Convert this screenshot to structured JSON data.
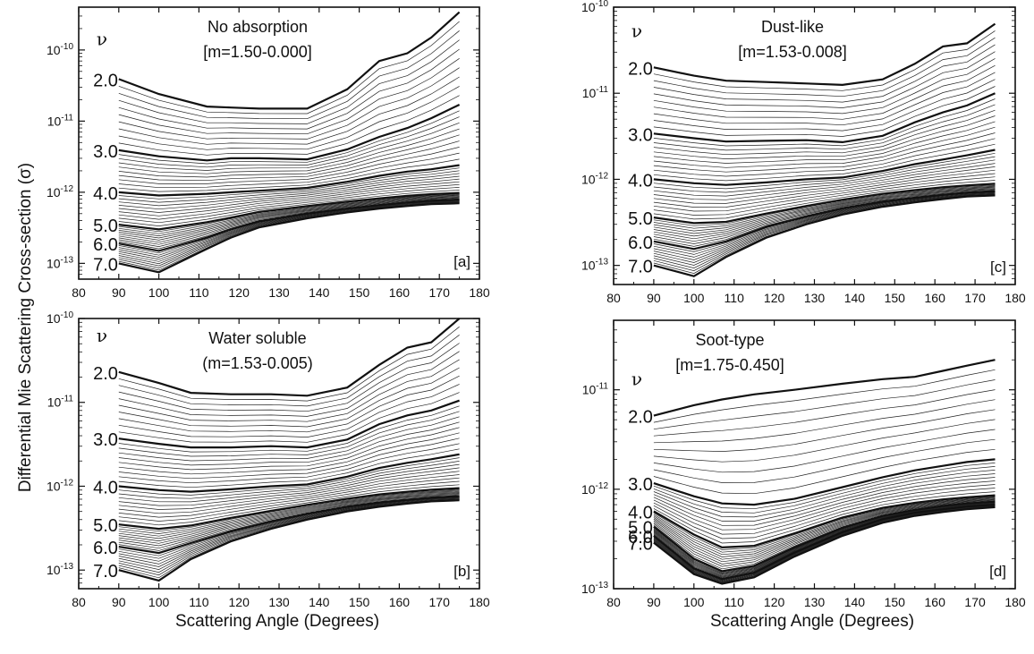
{
  "figure": {
    "ylabel": "Differential Mie Scattering Cross-section (σ)",
    "xlabel": "Scattering Angle (Degrees)"
  },
  "chart_data": [
    {
      "id": "a",
      "type": "line",
      "title": "No absorption",
      "subtitle": "[m=1.50-0.000]",
      "panel_label": "[a]",
      "nu_symbol": "ν",
      "xlim": [
        80,
        180
      ],
      "ylim": [
        6e-14,
        4e-10
      ],
      "y_scale": "log",
      "x_ticks": [
        "80",
        "90",
        "100",
        "110",
        "120",
        "130",
        "140",
        "150",
        "160",
        "170",
        "180"
      ],
      "y_ticks": [
        {
          "v": 1e-13,
          "label": "10-13"
        },
        {
          "v": 1e-12,
          "label": "10-12"
        },
        {
          "v": 1e-11,
          "label": "10-11"
        },
        {
          "v": 1e-10,
          "label": "10-10"
        }
      ],
      "x": [
        90,
        100,
        112,
        118,
        125,
        137,
        147,
        155,
        162,
        168,
        175
      ],
      "nu_labels": [
        "2.0",
        "3.0",
        "4.0",
        "5.0",
        "6.0",
        "7.0"
      ],
      "series": [
        {
          "nu": "2.0",
          "values": [
            3.9e-11,
            2.4e-11,
            1.6e-11,
            1.55e-11,
            1.5e-11,
            1.5e-11,
            2.8e-11,
            7e-11,
            9e-11,
            1.5e-10,
            3.4e-10
          ]
        },
        {
          "nu": "3.0",
          "values": [
            3.9e-12,
            3.2e-12,
            2.8e-12,
            3e-12,
            3e-12,
            2.9e-12,
            4e-12,
            6e-12,
            8e-12,
            1.1e-11,
            1.7e-11
          ]
        },
        {
          "nu": "4.0",
          "values": [
            1e-12,
            9e-13,
            9.5e-13,
            1e-12,
            1.05e-12,
            1.15e-12,
            1.4e-12,
            1.7e-12,
            1.95e-12,
            2.1e-12,
            2.4e-12
          ]
        },
        {
          "nu": "5.0",
          "values": [
            3.5e-13,
            3e-13,
            3.8e-13,
            4.4e-13,
            5.3e-13,
            6.4e-13,
            7.4e-13,
            8.2e-13,
            8.9e-13,
            9.4e-13,
            9.8e-13
          ]
        },
        {
          "nu": "6.0",
          "values": [
            1.9e-13,
            1.5e-13,
            2.3e-13,
            3e-13,
            3.9e-13,
            5e-13,
            5.9e-13,
            6.6e-13,
            7.2e-13,
            7.6e-13,
            7.9e-13
          ]
        },
        {
          "nu": "7.0",
          "values": [
            1e-13,
            7.5e-14,
            1.6e-13,
            2.3e-13,
            3.2e-13,
            4.3e-13,
            5.2e-13,
            5.9e-13,
            6.4e-13,
            6.8e-13,
            7e-13
          ]
        }
      ]
    },
    {
      "id": "b",
      "type": "line",
      "title": "Water soluble",
      "subtitle": "(m=1.53-0.005)",
      "panel_label": "[b]",
      "nu_symbol": "ν",
      "xlim": [
        80,
        180
      ],
      "ylim": [
        6e-14,
        1e-10
      ],
      "y_scale": "log",
      "x_ticks": [
        "80",
        "90",
        "100",
        "110",
        "120",
        "130",
        "140",
        "150",
        "160",
        "170",
        "180"
      ],
      "y_ticks": [
        {
          "v": 1e-13,
          "label": "10-13"
        },
        {
          "v": 1e-12,
          "label": "10-12"
        },
        {
          "v": 1e-11,
          "label": "10-11"
        },
        {
          "v": 1e-10,
          "label": "10-10"
        }
      ],
      "x": [
        90,
        100,
        108,
        118,
        128,
        137,
        147,
        155,
        162,
        168,
        175
      ],
      "nu_labels": [
        "2.0",
        "3.0",
        "4.0",
        "5.0",
        "6.0",
        "7.0"
      ],
      "series": [
        {
          "nu": "2.0",
          "values": [
            2.3e-11,
            1.7e-11,
            1.3e-11,
            1.25e-11,
            1.25e-11,
            1.2e-11,
            1.5e-11,
            2.8e-11,
            4.5e-11,
            5.2e-11,
            1e-10
          ]
        },
        {
          "nu": "3.0",
          "values": [
            3.7e-12,
            3.2e-12,
            2.9e-12,
            2.9e-12,
            3e-12,
            2.9e-12,
            3.6e-12,
            5.5e-12,
            7e-12,
            8e-12,
            1.05e-11
          ]
        },
        {
          "nu": "4.0",
          "values": [
            1e-12,
            9e-13,
            8.6e-13,
            9.2e-13,
            1e-12,
            1.05e-12,
            1.3e-12,
            1.65e-12,
            1.9e-12,
            2.1e-12,
            2.4e-12
          ]
        },
        {
          "nu": "5.0",
          "values": [
            3.5e-13,
            3.1e-13,
            3.4e-13,
            4.2e-13,
            5.1e-13,
            6e-13,
            7.1e-13,
            8e-13,
            8.6e-13,
            9.1e-13,
            9.5e-13
          ]
        },
        {
          "nu": "6.0",
          "values": [
            1.9e-13,
            1.6e-13,
            2.1e-13,
            2.9e-13,
            3.8e-13,
            4.7e-13,
            5.7e-13,
            6.4e-13,
            6.9e-13,
            7.3e-13,
            7.6e-13
          ]
        },
        {
          "nu": "7.0",
          "values": [
            1e-13,
            7.5e-14,
            1.35e-13,
            2.2e-13,
            3.1e-13,
            4e-13,
            5e-13,
            5.7e-13,
            6.2e-13,
            6.6e-13,
            6.8e-13
          ]
        }
      ]
    },
    {
      "id": "c",
      "type": "line",
      "title": "Dust-like",
      "subtitle": "[m=1.53-0.008]",
      "panel_label": "[c]",
      "nu_symbol": "ν",
      "xlim": [
        80,
        180
      ],
      "ylim": [
        6e-14,
        1e-10
      ],
      "y_scale": "log",
      "x_ticks": [
        "80",
        "90",
        "100",
        "110",
        "120",
        "130",
        "140",
        "150",
        "160",
        "170",
        "180"
      ],
      "y_ticks": [
        {
          "v": 1e-13,
          "label": "10-13"
        },
        {
          "v": 1e-12,
          "label": "10-12"
        },
        {
          "v": 1e-11,
          "label": "10-11"
        },
        {
          "v": 1e-10,
          "label": "10-10"
        }
      ],
      "x": [
        90,
        100,
        108,
        118,
        128,
        137,
        147,
        155,
        162,
        168,
        175
      ],
      "nu_labels": [
        "2.0",
        "3.0",
        "4.0",
        "5.0",
        "6.0",
        "7.0"
      ],
      "series": [
        {
          "nu": "2.0",
          "values": [
            2e-11,
            1.6e-11,
            1.4e-11,
            1.35e-11,
            1.3e-11,
            1.25e-11,
            1.45e-11,
            2.2e-11,
            3.5e-11,
            3.8e-11,
            6.4e-11
          ]
        },
        {
          "nu": "3.0",
          "values": [
            3.4e-12,
            3e-12,
            2.75e-12,
            2.8e-12,
            2.85e-12,
            2.7e-12,
            3.2e-12,
            4.6e-12,
            6e-12,
            7.2e-12,
            1e-11
          ]
        },
        {
          "nu": "4.0",
          "values": [
            1e-12,
            9e-13,
            8.6e-13,
            9.2e-13,
            1e-12,
            1.05e-12,
            1.25e-12,
            1.5e-12,
            1.7e-12,
            1.9e-12,
            2.2e-12
          ]
        },
        {
          "nu": "5.0",
          "values": [
            3.6e-13,
            3.1e-13,
            3.2e-13,
            4e-13,
            4.9e-13,
            5.8e-13,
            6.8e-13,
            7.5e-13,
            8.1e-13,
            8.5e-13,
            8.9e-13
          ]
        },
        {
          "nu": "6.0",
          "values": [
            1.9e-13,
            1.55e-13,
            1.9e-13,
            2.8e-13,
            3.7e-13,
            4.6e-13,
            5.5e-13,
            6.1e-13,
            6.6e-13,
            7e-13,
            7.3e-13
          ]
        },
        {
          "nu": "7.0",
          "values": [
            1e-13,
            7.5e-14,
            1.25e-13,
            2.1e-13,
            3e-13,
            3.9e-13,
            4.8e-13,
            5.4e-13,
            5.9e-13,
            6.3e-13,
            6.5e-13
          ]
        }
      ]
    },
    {
      "id": "d",
      "type": "line",
      "title": "Soot-type",
      "subtitle": "[m=1.75-0.450]",
      "panel_label": "[d]",
      "nu_symbol": "ν",
      "xlim": [
        80,
        180
      ],
      "ylim": [
        1e-13,
        5e-11
      ],
      "y_scale": "log",
      "x_ticks": [
        "80",
        "90",
        "100",
        "110",
        "120",
        "130",
        "140",
        "150",
        "160",
        "170",
        "180"
      ],
      "y_ticks": [
        {
          "v": 1e-13,
          "label": "10-13"
        },
        {
          "v": 1e-12,
          "label": "10-12"
        },
        {
          "v": 1e-11,
          "label": "10-11"
        }
      ],
      "x": [
        90,
        100,
        107,
        115,
        125,
        137,
        147,
        155,
        162,
        168,
        175
      ],
      "nu_labels": [
        "2.0",
        "3.0",
        "4.0",
        "5.0",
        "6.0",
        "7.0"
      ],
      "series": [
        {
          "nu": "2.0",
          "values": [
            5.5e-12,
            7e-12,
            8e-12,
            9e-12,
            1e-11,
            1.15e-11,
            1.28e-11,
            1.35e-11,
            1.55e-11,
            1.75e-11,
            2e-11
          ]
        },
        {
          "nu": "3.0",
          "values": [
            1.15e-12,
            8.5e-13,
            7.2e-13,
            7e-13,
            8e-13,
            1.05e-12,
            1.32e-12,
            1.55e-12,
            1.72e-12,
            1.88e-12,
            2e-12
          ]
        },
        {
          "nu": "4.0",
          "values": [
            6e-13,
            3.5e-13,
            2.6e-13,
            2.7e-13,
            3.6e-13,
            5.2e-13,
            6.5e-13,
            7.3e-13,
            7.9e-13,
            8.3e-13,
            8.7e-13
          ]
        },
        {
          "nu": "5.0",
          "values": [
            4.2e-13,
            2e-13,
            1.5e-13,
            1.7e-13,
            2.6e-13,
            4.1e-13,
            5.4e-13,
            6.2e-13,
            6.8e-13,
            7.2e-13,
            7.5e-13
          ]
        },
        {
          "nu": "6.0",
          "values": [
            3.4e-13,
            1.6e-13,
            1.25e-13,
            1.45e-13,
            2.3e-13,
            3.7e-13,
            5e-13,
            5.8e-13,
            6.3e-13,
            6.7e-13,
            7e-13
          ]
        },
        {
          "nu": "7.0",
          "values": [
            2.9e-13,
            1.4e-13,
            1.12e-13,
            1.3e-13,
            2.1e-13,
            3.4e-13,
            4.6e-13,
            5.4e-13,
            5.9e-13,
            6.3e-13,
            6.6e-13
          ]
        }
      ]
    }
  ]
}
